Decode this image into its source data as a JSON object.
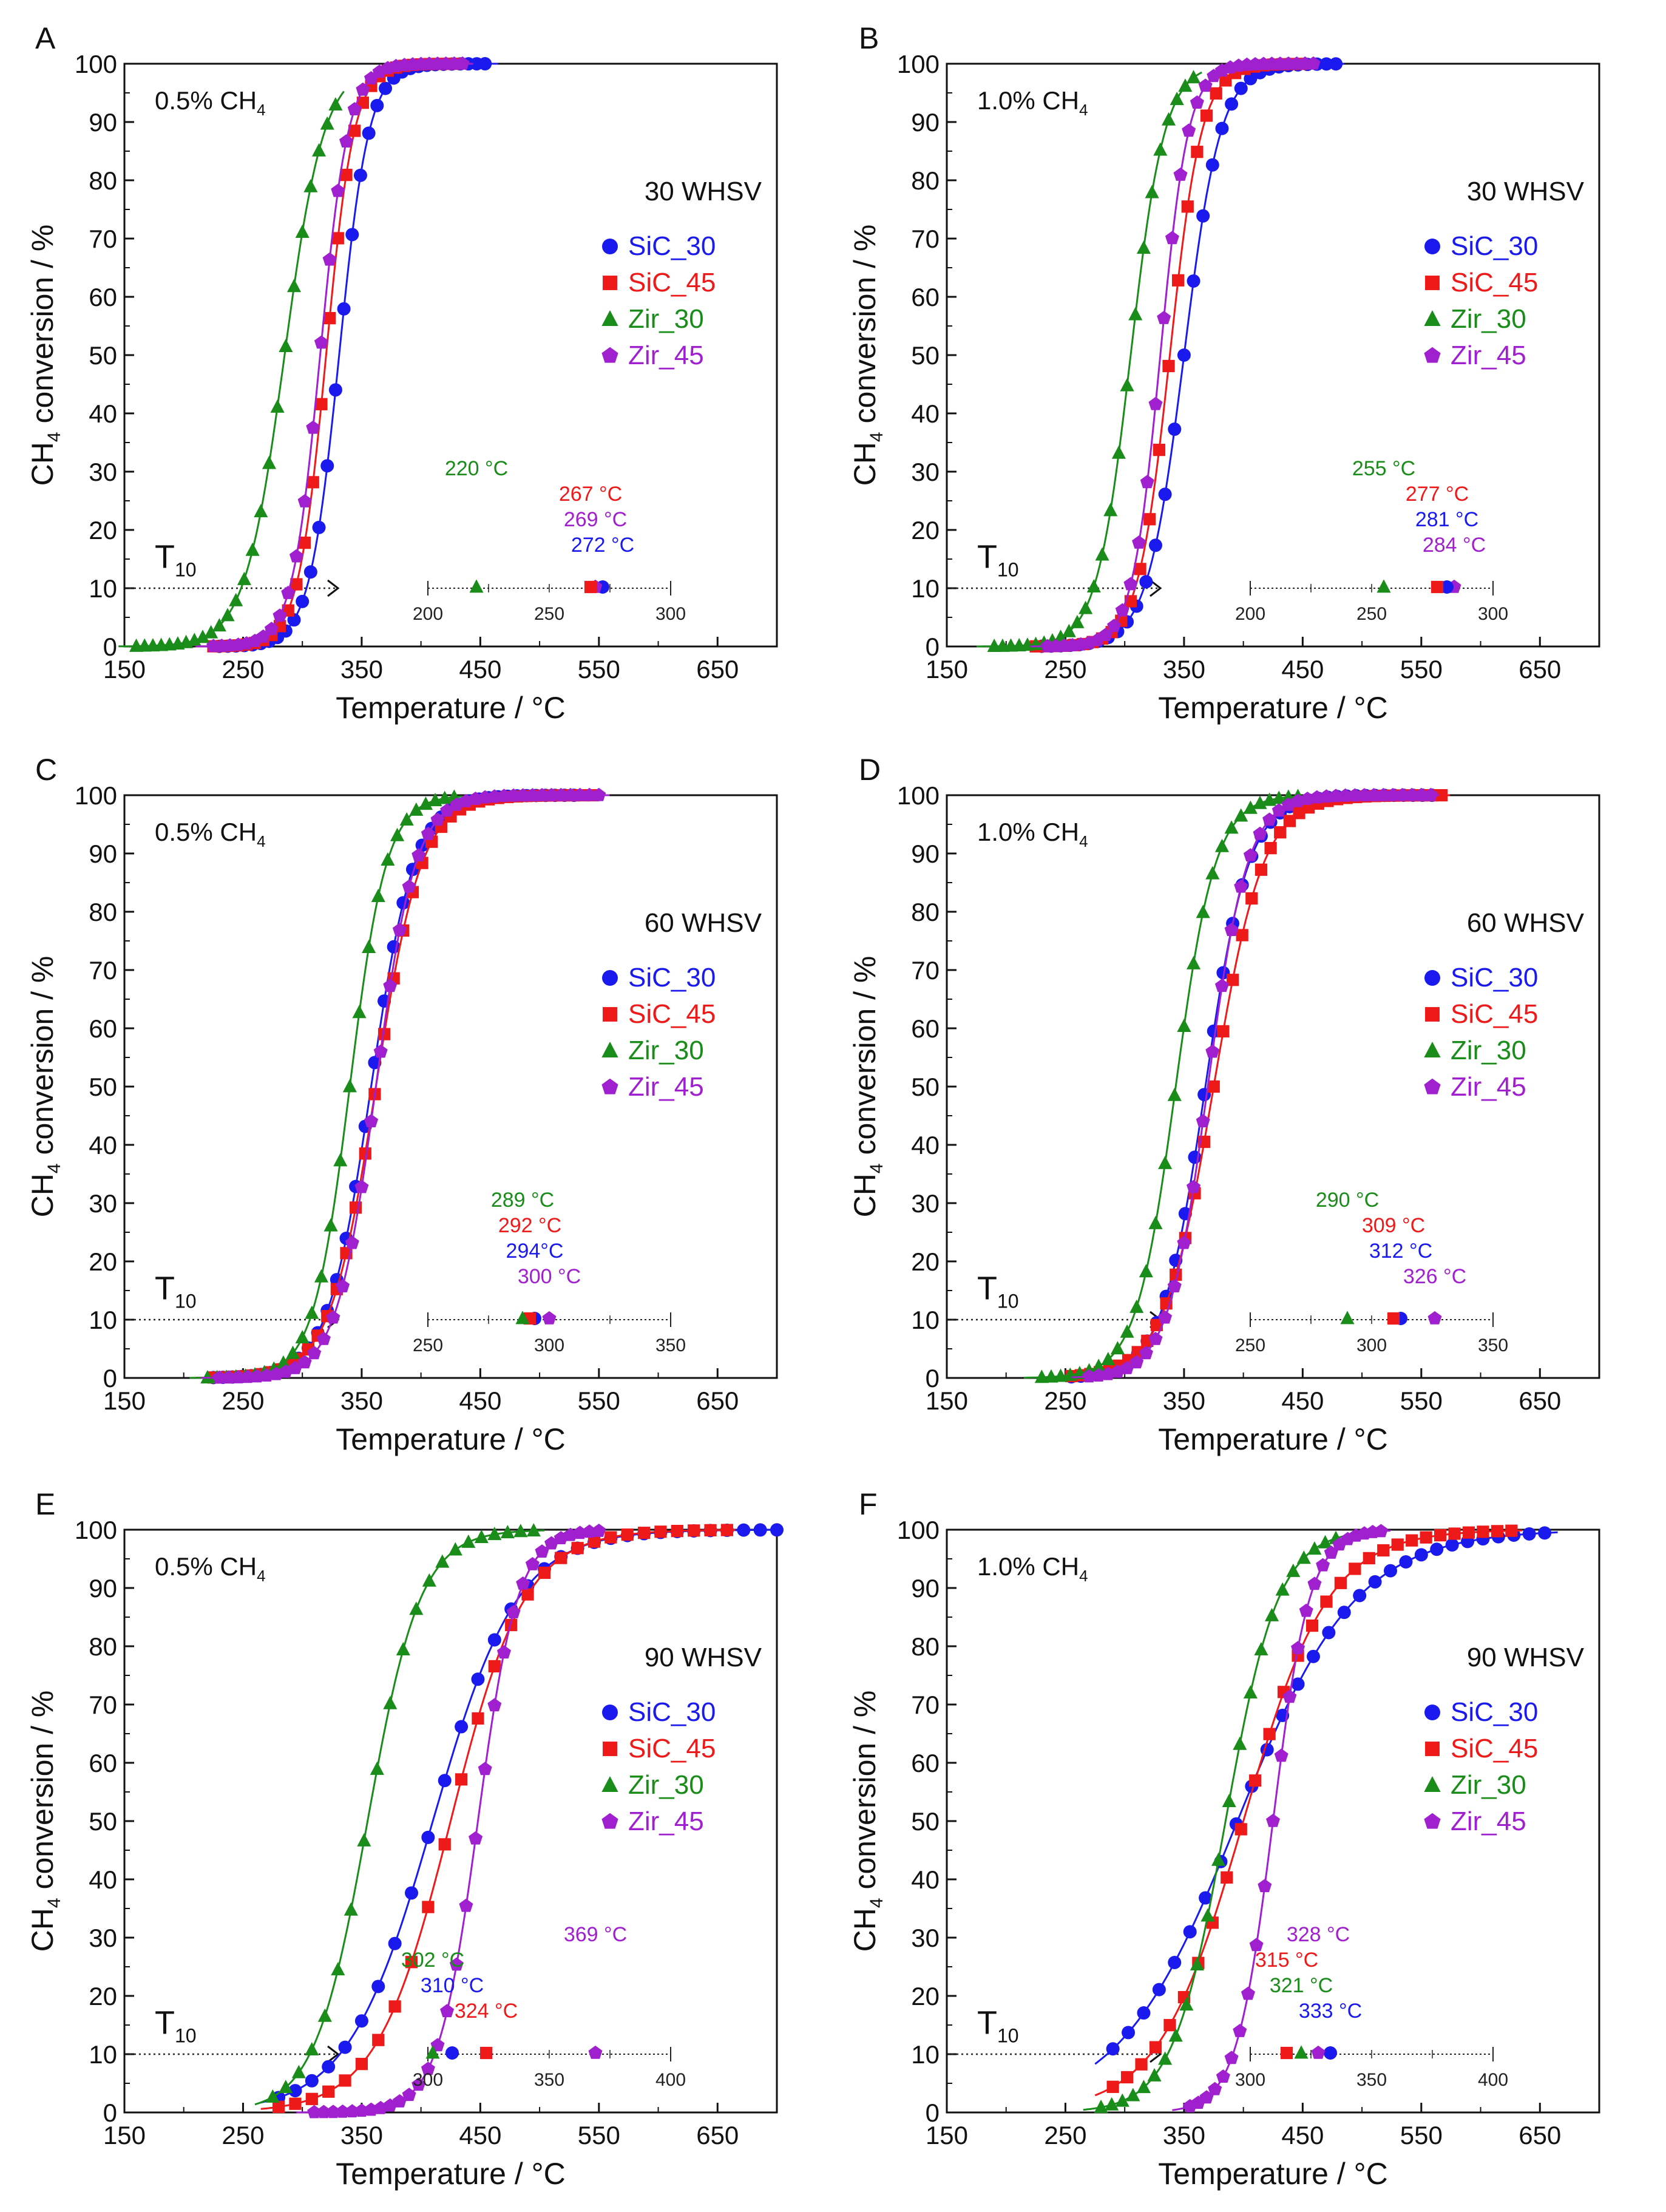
{
  "figure": {
    "series_names": [
      "SiC_30",
      "SiC_45",
      "Zir_30",
      "Zir_45"
    ],
    "series_colors": [
      "#1a1aee",
      "#ee1a1a",
      "#1a8c1a",
      "#a020d0"
    ],
    "series_markers": [
      "circle-marker",
      "square-marker",
      "triangle-marker",
      "pentagon-marker"
    ],
    "xlabel": "Temperature / °C",
    "ylabel_prefix": "CH",
    "ylabel_sub": "4",
    "ylabel_suffix": " conversion / %",
    "t10_main": "T",
    "t10_sub": "10",
    "yticks": [
      "0",
      "10",
      "20",
      "30",
      "40",
      "50",
      "60",
      "70",
      "80",
      "90",
      "100"
    ],
    "xticks": [
      "150",
      "250",
      "350",
      "450",
      "550",
      "650"
    ]
  },
  "chart_data": [
    {
      "panel": "A",
      "type": "scatter",
      "title": "",
      "conc_label": "0.5% CH",
      "conc_sub": "4",
      "whsv": "30 WHSV",
      "xlabel": "Temperature / °C",
      "ylabel": "CH4 conversion / %",
      "xlim": [
        150,
        700
      ],
      "ylim": [
        0,
        100
      ],
      "series": [
        {
          "name": "SiC_30",
          "T50": 331,
          "k": 0.08,
          "Tmin": 230,
          "Tmax": 460,
          "step": 7
        },
        {
          "name": "SiC_45",
          "T50": 320,
          "k": 0.085,
          "Tmin": 225,
          "Tmax": 430,
          "step": 7
        },
        {
          "name": "Zir_30",
          "T50": 285,
          "k": 0.06,
          "Tmin": 160,
          "Tmax": 330,
          "step": 7
        },
        {
          "name": "Zir_45",
          "T50": 315,
          "k": 0.085,
          "Tmin": 225,
          "Tmax": 440,
          "step": 7
        }
      ],
      "inset": {
        "axis_min": 200,
        "axis_max": 300,
        "tick_labels": [
          "200",
          "250",
          "300"
        ],
        "points": [
          {
            "series": "SiC_30",
            "T10": 272,
            "label": "272 °C"
          },
          {
            "series": "Zir_45",
            "T10": 269,
            "label": "269 °C"
          },
          {
            "series": "SiC_45",
            "T10": 267,
            "label": "267 °C"
          },
          {
            "series": "Zir_30",
            "T10": 220,
            "label": "220 °C"
          }
        ]
      }
    },
    {
      "panel": "B",
      "type": "scatter",
      "title": "",
      "conc_label": "1.0% CH",
      "conc_sub": "4",
      "whsv": "30 WHSV",
      "xlabel": "Temperature / °C",
      "ylabel": "CH4 conversion / %",
      "xlim": [
        150,
        700
      ],
      "ylim": [
        0,
        100
      ],
      "series": [
        {
          "name": "SiC_30",
          "T50": 350,
          "k": 0.065,
          "Tmin": 230,
          "Tmax": 480,
          "step": 8
        },
        {
          "name": "SiC_45",
          "T50": 338,
          "k": 0.075,
          "Tmin": 225,
          "Tmax": 455,
          "step": 8
        },
        {
          "name": "Zir_30",
          "T50": 305,
          "k": 0.07,
          "Tmin": 190,
          "Tmax": 360,
          "step": 7
        },
        {
          "name": "Zir_45",
          "T50": 330,
          "k": 0.085,
          "Tmin": 235,
          "Tmax": 460,
          "step": 7
        }
      ],
      "inset": {
        "axis_min": 200,
        "axis_max": 300,
        "tick_labels": [
          "200",
          "250",
          "300"
        ],
        "points": [
          {
            "series": "Zir_45",
            "T10": 284,
            "label": "284 °C"
          },
          {
            "series": "SiC_30",
            "T10": 281,
            "label": "281 °C"
          },
          {
            "series": "SiC_45",
            "T10": 277,
            "label": "277 °C"
          },
          {
            "series": "Zir_30",
            "T10": 255,
            "label": "255 °C"
          }
        ]
      }
    },
    {
      "panel": "C",
      "type": "scatter",
      "title": "",
      "conc_label": "0.5% CH",
      "conc_sub": "4",
      "whsv": "60 WHSV",
      "xlabel": "Temperature / °C",
      "ylabel": "CH4 conversion / %",
      "xlim": [
        150,
        700
      ],
      "ylim": [
        0,
        100
      ],
      "series": [
        {
          "name": "SiC_30",
          "T50": 358,
          "k": 0.055,
          "Tmin": 225,
          "Tmax": 530,
          "step": 8
        },
        {
          "name": "SiC_45",
          "T50": 362,
          "k": 0.052,
          "Tmin": 225,
          "Tmax": 550,
          "step": 8
        },
        {
          "name": "Zir_30",
          "T50": 340,
          "k": 0.065,
          "Tmin": 220,
          "Tmax": 430,
          "step": 8
        },
        {
          "name": "Zir_45",
          "T50": 362,
          "k": 0.06,
          "Tmin": 230,
          "Tmax": 555,
          "step": 8
        }
      ],
      "inset": {
        "axis_min": 250,
        "axis_max": 350,
        "tick_labels": [
          "250",
          "300",
          "350"
        ],
        "points": [
          {
            "series": "Zir_45",
            "T10": 300,
            "label": "300 °C"
          },
          {
            "series": "SiC_30",
            "T10": 294,
            "label": "294°C"
          },
          {
            "series": "SiC_45",
            "T10": 292,
            "label": "292 °C"
          },
          {
            "series": "Zir_30",
            "T10": 289,
            "label": "289 °C"
          }
        ]
      }
    },
    {
      "panel": "D",
      "type": "scatter",
      "title": "",
      "conc_label": "1.0% CH",
      "conc_sub": "4",
      "whsv": "60 WHSV",
      "xlabel": "Temperature / °C",
      "ylabel": "CH4 conversion / %",
      "xlim": [
        150,
        700
      ],
      "ylim": [
        0,
        100
      ],
      "series": [
        {
          "name": "SiC_30",
          "T50": 368,
          "k": 0.055,
          "Tmin": 255,
          "Tmax": 560,
          "step": 8
        },
        {
          "name": "SiC_45",
          "T50": 375,
          "k": 0.048,
          "Tmin": 255,
          "Tmax": 570,
          "step": 8
        },
        {
          "name": "Zir_30",
          "T50": 343,
          "k": 0.06,
          "Tmin": 230,
          "Tmax": 450,
          "step": 8
        },
        {
          "name": "Zir_45",
          "T50": 370,
          "k": 0.06,
          "Tmin": 270,
          "Tmax": 560,
          "step": 8
        }
      ],
      "inset": {
        "axis_min": 250,
        "axis_max": 350,
        "tick_labels": [
          "250",
          "300",
          "350"
        ],
        "points": [
          {
            "series": "Zir_45",
            "T10": 326,
            "label": "326 °C"
          },
          {
            "series": "SiC_30",
            "T10": 312,
            "label": "312 °C"
          },
          {
            "series": "SiC_45",
            "T10": 309,
            "label": "309 °C"
          },
          {
            "series": "Zir_30",
            "T10": 290,
            "label": "290 °C"
          }
        ]
      }
    },
    {
      "panel": "E",
      "type": "scatter",
      "title": "",
      "conc_label": "0.5% CH",
      "conc_sub": "4",
      "whsv": "90 WHSV",
      "xlabel": "Temperature / °C",
      "ylabel": "CH4 conversion / %",
      "xlim": [
        150,
        700
      ],
      "ylim": [
        0,
        100
      ],
      "series": [
        {
          "name": "SiC_30",
          "T50": 410,
          "k": 0.028,
          "Tmin": 280,
          "Tmax": 700,
          "step": 14
        },
        {
          "name": "SiC_45",
          "T50": 425,
          "k": 0.032,
          "Tmin": 280,
          "Tmax": 660,
          "step": 14
        },
        {
          "name": "Zir_30",
          "T50": 355,
          "k": 0.045,
          "Tmin": 275,
          "Tmax": 500,
          "step": 11
        },
        {
          "name": "Zir_45",
          "T50": 448,
          "k": 0.06,
          "Tmin": 310,
          "Tmax": 550,
          "step": 8
        }
      ],
      "inset": {
        "axis_min": 300,
        "axis_max": 400,
        "tick_labels": [
          "300",
          "350",
          "400"
        ],
        "points": [
          {
            "series": "SiC_45",
            "T10": 324,
            "label": "324 °C"
          },
          {
            "series": "SiC_30",
            "T10": 310,
            "label": "310 °C"
          },
          {
            "series": "Zir_30",
            "T10": 302,
            "label": "302 °C"
          },
          {
            "series": "Zir_45",
            "T10": 369,
            "label": "369 °C"
          }
        ]
      }
    },
    {
      "panel": "F",
      "type": "scatter",
      "title": "",
      "conc_label": "1.0% CH",
      "conc_sub": "4",
      "whsv": "90 WHSV",
      "xlabel": "Temperature / °C",
      "ylabel": "CH4 conversion / %",
      "xlim": [
        150,
        700
      ],
      "ylim": [
        0,
        100
      ],
      "series": [
        {
          "name": "SiC_30",
          "T50": 395,
          "k": 0.02,
          "Tmin": 290,
          "Tmax": 660,
          "step": 13
        },
        {
          "name": "SiC_45",
          "T50": 400,
          "k": 0.028,
          "Tmin": 290,
          "Tmax": 630,
          "step": 12
        },
        {
          "name": "Zir_30",
          "T50": 385,
          "k": 0.045,
          "Tmin": 280,
          "Tmax": 480,
          "step": 9
        },
        {
          "name": "Zir_45",
          "T50": 425,
          "k": 0.065,
          "Tmin": 355,
          "Tmax": 520,
          "step": 7
        }
      ],
      "inset": {
        "axis_min": 300,
        "axis_max": 400,
        "tick_labels": [
          "300",
          "350",
          "400"
        ],
        "points": [
          {
            "series": "SiC_30",
            "T10": 333,
            "label": "333 °C"
          },
          {
            "series": "Zir_30",
            "T10": 321,
            "label": "321 °C"
          },
          {
            "series": "SiC_45",
            "T10": 315,
            "label": "315 °C"
          },
          {
            "series": "Zir_45",
            "T10": 328,
            "label": "328 °C"
          }
        ]
      }
    }
  ]
}
